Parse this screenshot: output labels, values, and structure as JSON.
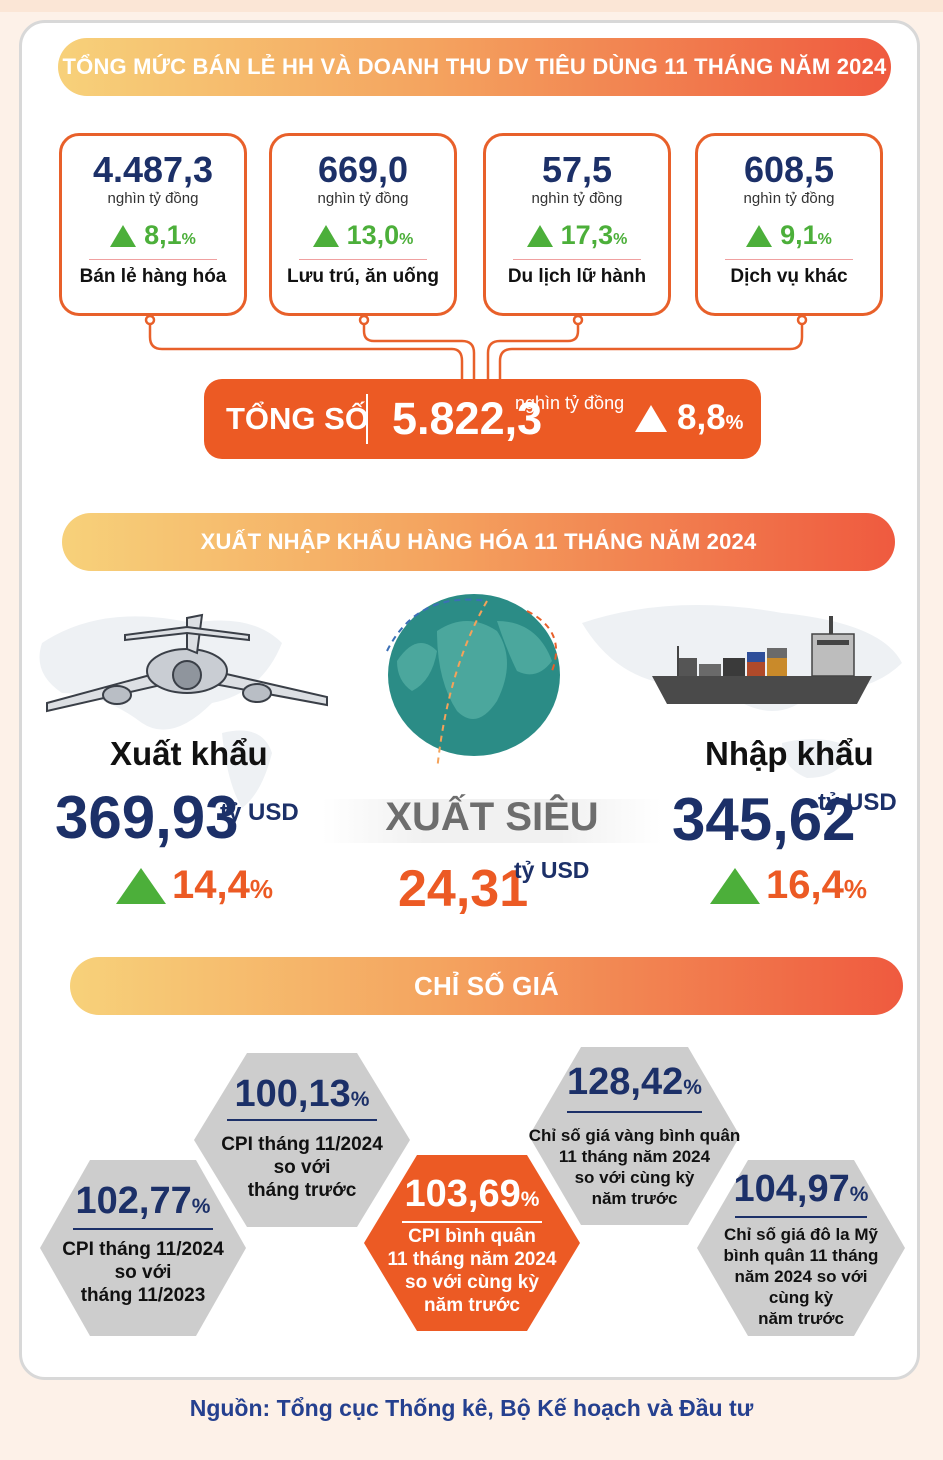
{
  "retail": {
    "banner": "TỔNG MỨC BÁN LẺ HH VÀ DOANH THU DV TIÊU DÙNG 11 THÁNG NĂM 2024",
    "cards": [
      {
        "value": "4.487,3",
        "unit": "nghìn tỷ đồng",
        "change": "8,1",
        "pct": "%",
        "label": "Bán lẻ hàng hóa"
      },
      {
        "value": "669,0",
        "unit": "nghìn tỷ đồng",
        "change": "13,0",
        "pct": "%",
        "label": "Lưu trú, ăn uống"
      },
      {
        "value": "57,5",
        "unit": "nghìn tỷ đồng",
        "change": "17,3",
        "pct": "%",
        "label": "Du lịch lữ hành"
      },
      {
        "value": "608,5",
        "unit": "nghìn tỷ đồng",
        "change": "9,1",
        "pct": "%",
        "label": "Dịch vụ khác"
      }
    ],
    "total": {
      "label": "TỔNG SỐ",
      "value": "5.822,3",
      "unit": "nghìn tỷ đồng",
      "change": "8,8",
      "pct": "%"
    }
  },
  "trade": {
    "banner": "XUẤT NHẬP KHẨU HÀNG HÓA 11 THÁNG NĂM 2024",
    "export": {
      "label": "Xuất khẩu",
      "value": "369,93",
      "unit": "tỷ USD",
      "change": "14,4",
      "pct": "%"
    },
    "import": {
      "label": "Nhập khẩu",
      "value": "345,62",
      "unit": "tỷ USD",
      "change": "16,4",
      "pct": "%"
    },
    "surplus": {
      "label": "XUẤT SIÊU",
      "value": "24,31",
      "unit": "tỷ USD"
    }
  },
  "prices": {
    "banner": "CHỈ SỐ GIÁ",
    "items": [
      {
        "value": "102,77",
        "pct": "%",
        "desc": "CPI tháng 11/2024\nso với\ntháng 11/2023"
      },
      {
        "value": "100,13",
        "pct": "%",
        "desc": "CPI tháng 11/2024\nso với\ntháng trước"
      },
      {
        "value": "103,69",
        "pct": "%",
        "desc": "CPI bình quân\n11 tháng năm 2024\nso với cùng kỳ\nnăm trước"
      },
      {
        "value": "128,42",
        "pct": "%",
        "desc": "Chỉ số giá vàng bình quân\n11 tháng năm 2024\nso với cùng kỳ\nnăm trước"
      },
      {
        "value": "104,97",
        "pct": "%",
        "desc": "Chỉ số giá đô la Mỹ\nbình quân 11 tháng\nnăm 2024 so với\ncùng kỳ\nnăm trước"
      }
    ]
  },
  "colors": {
    "accent": "#ec5a24",
    "navy": "#1c3068",
    "green": "#4caf3a",
    "hex_grey": "#cdcdcd"
  },
  "footer": "Nguồn: Tổng cục Thống kê, Bộ Kế hoạch và Đầu tư"
}
